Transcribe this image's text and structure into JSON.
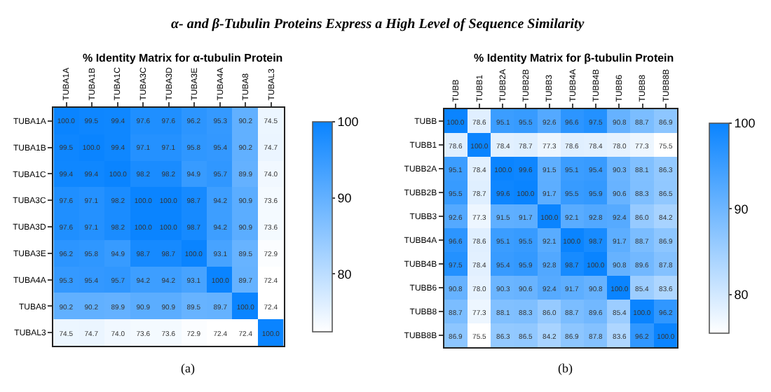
{
  "chart_data": [
    {
      "type": "heatmap",
      "title": "% Identity Matrix for α-tubulin Protein",
      "annotations": [
        "α- and β-Tubulin Proteins Express a High Level of Sequence Similarity",
        "(a)"
      ],
      "categories": [
        "TUBA1A",
        "TUBA1B",
        "TUBA1C",
        "TUBA3C",
        "TUBA3D",
        "TUBA3E",
        "TUBA4A",
        "TUBA8",
        "TUBAL3"
      ],
      "y_categories": [
        "TUBA1A",
        "TUBA1B",
        "TUBA1C",
        "TUBA3C",
        "TUBA3D",
        "TUBA3E",
        "TUBA4A",
        "TUBA8",
        "TUBAL3"
      ],
      "cells": [
        [
          100.0,
          99.5,
          99.4,
          97.6,
          97.6,
          96.2,
          95.3,
          90.2,
          74.5
        ],
        [
          99.5,
          100.0,
          99.4,
          97.1,
          97.1,
          95.8,
          95.4,
          90.2,
          74.7
        ],
        [
          99.4,
          99.4,
          100.0,
          98.2,
          98.2,
          94.9,
          95.7,
          89.9,
          74.0
        ],
        [
          97.6,
          97.1,
          98.2,
          100.0,
          100.0,
          98.7,
          94.2,
          90.9,
          73.6
        ],
        [
          97.6,
          97.1,
          98.2,
          100.0,
          100.0,
          98.7,
          94.2,
          90.9,
          73.6
        ],
        [
          96.2,
          95.8,
          94.9,
          98.7,
          98.7,
          100.0,
          93.1,
          89.5,
          72.9
        ],
        [
          95.3,
          95.4,
          95.7,
          94.2,
          94.2,
          93.1,
          100.0,
          89.7,
          72.4
        ],
        [
          90.2,
          90.2,
          89.9,
          90.9,
          90.9,
          89.5,
          89.7,
          100.0,
          72.4
        ],
        [
          74.5,
          74.7,
          74.0,
          73.6,
          73.6,
          72.9,
          72.4,
          72.4,
          100.0
        ]
      ],
      "cell_labels": [
        [
          "100.0",
          "99.5",
          "99.4",
          "97.6",
          "97.6",
          "96.2",
          "95.3",
          "90.2",
          "74.5"
        ],
        [
          "99.5",
          "100.0",
          "99.4",
          "97.1",
          "97.1",
          "95.8",
          "95.4",
          "90.2",
          "74.7"
        ],
        [
          "99.4",
          "99.4",
          "100.0",
          "98.2",
          "98.2",
          "94.9",
          "95.7",
          "89.9",
          "74.0"
        ],
        [
          "97.6",
          "97.1",
          "98.2",
          "100.0",
          "100.0",
          "98.7",
          "94.2",
          "90.9",
          "73.6"
        ],
        [
          "97.6",
          "97.1",
          "98.2",
          "100.0",
          "100.0",
          "98.7",
          "94.2",
          "90.9",
          "73.6"
        ],
        [
          "96.2",
          "95.8",
          "94.9",
          "98.7",
          "98.7",
          "100.0",
          "93.1",
          "89.5",
          "72.9"
        ],
        [
          "95.3",
          "95.4",
          "95.7",
          "94.2",
          "94.2",
          "93.1",
          "100.0",
          "89.7",
          "72.4"
        ],
        [
          "90.2",
          "90.2",
          "89.9",
          "90.9",
          "90.9",
          "89.5",
          "89.7",
          "100.0",
          "72.4"
        ],
        [
          "74.5",
          "74.7",
          "74.0",
          "73.6",
          "73.6",
          "72.9",
          "72.4",
          "72.4",
          "100.0"
        ]
      ],
      "colors": [
        "#ffffff",
        "#0a84ff"
      ],
      "clim": [
        72.4,
        100
      ],
      "cticks": [
        80,
        90,
        100
      ]
    },
    {
      "type": "heatmap",
      "title": "% Identity Matrix for β-tubulin Protein",
      "annotations": [
        "(b)"
      ],
      "categories": [
        "TUBB",
        "TUBB1",
        "TUBB2A",
        "TUBB2B",
        "TUBB3",
        "TUBB4A",
        "TUBB4B",
        "TUBB6",
        "TUBB8",
        "TUBB8B"
      ],
      "y_categories": [
        "TUBB",
        "TUBB1",
        "TUBB2A",
        "TUBB2B",
        "TUBB3",
        "TUBB4A",
        "TUBB4B",
        "TUBB6",
        "TUBB8",
        "TUBB8B"
      ],
      "cells": [
        [
          100.0,
          78.6,
          95.1,
          95.5,
          92.6,
          96.6,
          97.5,
          90.8,
          88.7,
          86.9
        ],
        [
          78.6,
          100.0,
          78.4,
          78.7,
          77.3,
          78.6,
          78.4,
          78.0,
          77.3,
          75.5
        ],
        [
          95.1,
          78.4,
          100.0,
          99.6,
          91.5,
          95.1,
          95.4,
          90.3,
          88.1,
          86.3
        ],
        [
          95.5,
          78.7,
          99.6,
          100.0,
          91.7,
          95.5,
          95.9,
          90.6,
          88.3,
          86.5
        ],
        [
          92.6,
          77.3,
          91.5,
          91.7,
          100.0,
          92.1,
          92.8,
          92.4,
          86.0,
          84.2
        ],
        [
          96.6,
          78.6,
          95.1,
          95.5,
          92.1,
          100.0,
          98.7,
          91.7,
          88.7,
          86.9
        ],
        [
          97.5,
          78.4,
          95.4,
          95.9,
          92.8,
          98.7,
          100.0,
          90.8,
          89.6,
          87.8
        ],
        [
          90.8,
          78.0,
          90.3,
          90.6,
          92.4,
          91.7,
          90.8,
          100.0,
          85.4,
          83.6
        ],
        [
          88.7,
          77.3,
          88.1,
          88.3,
          86.0,
          88.7,
          89.6,
          85.4,
          100.0,
          96.2
        ],
        [
          86.9,
          75.5,
          86.3,
          86.5,
          84.2,
          86.9,
          87.8,
          83.6,
          96.2,
          100.0
        ]
      ],
      "cell_labels": [
        [
          "100.0",
          "78.6",
          "95.1",
          "95.5",
          "92.6",
          "96.6",
          "97.5",
          "90.8",
          "88.7",
          "86.9"
        ],
        [
          "78.6",
          "100.0",
          "78.4",
          "78.7",
          "77.3",
          "78.6",
          "78.4",
          "78.0",
          "77.3",
          "75.5"
        ],
        [
          "95.1",
          "78.4",
          "100.0",
          "99.6",
          "91.5",
          "95.1",
          "95.4",
          "90.3",
          "88.1",
          "86.3"
        ],
        [
          "95.5",
          "78.7",
          "99.6",
          "100.0",
          "91.7",
          "95.5",
          "95.9",
          "90.6",
          "88.3",
          "86.5"
        ],
        [
          "92.6",
          "77.3",
          "91.5",
          "91.7",
          "100.0",
          "92.1",
          "92.8",
          "92.4",
          "86.0",
          "84.2"
        ],
        [
          "96.6",
          "78.6",
          "95.1",
          "95.5",
          "92.1",
          "100.0",
          "98.7",
          "91.7",
          "88.7",
          "86.9"
        ],
        [
          "97.5",
          "78.4",
          "95.4",
          "95.9",
          "92.8",
          "98.7",
          "100.0",
          "90.8",
          "89.6",
          "87.8"
        ],
        [
          "90.8",
          "78.0",
          "90.3",
          "90.6",
          "92.4",
          "91.7",
          "90.8",
          "100.0",
          "85.4",
          "83.6"
        ],
        [
          "88.7",
          "77.3",
          "88.1",
          "88.3",
          "86.0",
          "88.7",
          "89.6",
          "85.4",
          "100.0",
          "96.2"
        ],
        [
          "86.9",
          "75.5",
          "86.3",
          "86.5",
          "84.2",
          "86.9",
          "87.8",
          "83.6",
          "96.2",
          "100.0"
        ]
      ],
      "colors": [
        "#ffffff",
        "#0a84ff"
      ],
      "clim": [
        75.5,
        100
      ],
      "cticks": [
        80,
        90,
        100
      ]
    }
  ]
}
